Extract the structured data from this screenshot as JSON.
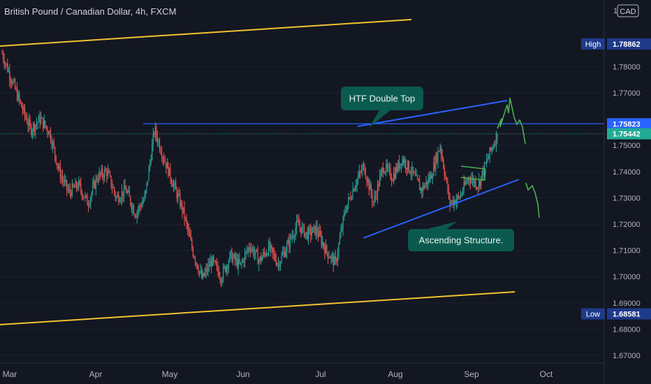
{
  "header": {
    "symbol_title": "British Pound / Canadian Dollar, 4h, FXCM"
  },
  "price_axis": {
    "currency_badge": "CAD",
    "top_partial_label": "1.7",
    "high_label": "High",
    "high_value": "1.78862",
    "low_label": "Low",
    "low_value": "1.68581",
    "level_label_1": "1.75823",
    "level_label_2": "1.75442"
  },
  "annotations": {
    "double_top": "HTF Double Top",
    "ascending": "Ascending Structure."
  },
  "colors": {
    "background": "#131722",
    "up_candle": "#26a69a",
    "down_candle": "#ef5350",
    "channel_line": "#f2c230",
    "trend_line": "#2962ff",
    "projection": "#4caf50",
    "label_bg": "#0b5a4f",
    "high_low_badge": "#1e3a8a",
    "last_price_badge": "#22ab94"
  },
  "chart_data": {
    "type": "candlestick",
    "title": "British Pound / Canadian Dollar, 4h, FXCM",
    "currency": "CAD",
    "ylim": [
      1.665,
      1.79
    ],
    "y_ticks": [
      1.78,
      1.77,
      1.75,
      1.74,
      1.73,
      1.72,
      1.71,
      1.7,
      1.69,
      1.68,
      1.67
    ],
    "x_ticks": [
      "Mar",
      "Apr",
      "May",
      "Jun",
      "Jul",
      "Aug",
      "Sep",
      "Oct"
    ],
    "high": 1.78862,
    "low": 1.68581,
    "marked_levels": [
      1.75823,
      1.75442
    ],
    "price_path": [
      [
        "Mar",
        1.785
      ],
      [
        "Mar",
        1.775
      ],
      [
        "Mar",
        1.765
      ],
      [
        "Mar",
        1.756
      ],
      [
        "Mar",
        1.76
      ],
      [
        "Mar",
        1.755
      ],
      [
        "Mar",
        1.74
      ],
      [
        "Mar",
        1.732
      ],
      [
        "Mar",
        1.735
      ],
      [
        "Mar",
        1.728
      ],
      [
        "Apr",
        1.738
      ],
      [
        "Apr",
        1.74
      ],
      [
        "Apr",
        1.73
      ],
      [
        "Apr",
        1.733
      ],
      [
        "Apr",
        1.724
      ],
      [
        "Apr",
        1.73
      ],
      [
        "Apr",
        1.756
      ],
      [
        "Apr",
        1.745
      ],
      [
        "Apr",
        1.735
      ],
      [
        "Apr",
        1.725
      ],
      [
        "May",
        1.71
      ],
      [
        "May",
        1.699
      ],
      [
        "May",
        1.706
      ],
      [
        "May",
        1.7
      ],
      [
        "May",
        1.708
      ],
      [
        "May",
        1.704
      ],
      [
        "Jun",
        1.712
      ],
      [
        "Jun",
        1.706
      ],
      [
        "Jun",
        1.711
      ],
      [
        "Jun",
        1.705
      ],
      [
        "Jun",
        1.712
      ],
      [
        "Jun",
        1.72
      ],
      [
        "Jun",
        1.716
      ],
      [
        "Jul",
        1.718
      ],
      [
        "Jul",
        1.71
      ],
      [
        "Jul",
        1.705
      ],
      [
        "Jul",
        1.725
      ],
      [
        "Jul",
        1.735
      ],
      [
        "Jul",
        1.742
      ],
      [
        "Jul",
        1.728
      ],
      [
        "Aug",
        1.742
      ],
      [
        "Aug",
        1.738
      ],
      [
        "Aug",
        1.745
      ],
      [
        "Aug",
        1.74
      ],
      [
        "Aug",
        1.733
      ],
      [
        "Aug",
        1.738
      ],
      [
        "Aug",
        1.75
      ],
      [
        "Aug",
        1.728
      ],
      [
        "Sep",
        1.73
      ],
      [
        "Sep",
        1.738
      ],
      [
        "Sep",
        1.735
      ],
      [
        "Sep",
        1.745
      ],
      [
        "Sep",
        1.7544
      ]
    ],
    "projection": {
      "path": [
        1.7544,
        1.756,
        1.7575,
        1.761,
        1.752,
        1.754,
        1.75
      ],
      "second_leg": [
        1.735,
        1.731,
        1.733,
        1.722
      ]
    }
  }
}
